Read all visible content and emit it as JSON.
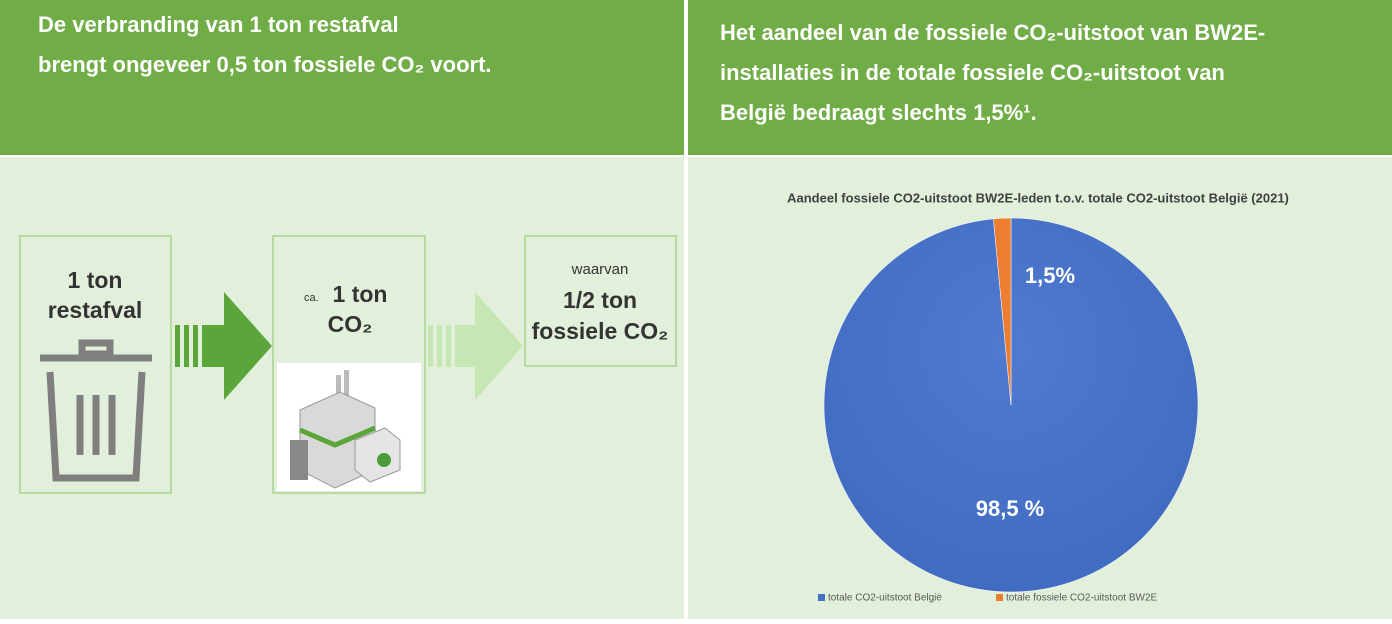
{
  "left": {
    "title_lines": [
      "De verbranding van 1 ton restafval",
      "brengt ongeveer 0,5 ton fossiele CO₂ voort."
    ],
    "boxes": [
      {
        "lines": [
          "1 ton",
          "restafval"
        ]
      },
      {
        "prefix": "ca.",
        "lines": [
          "1 ton",
          "CO₂"
        ]
      },
      {
        "prefix": "waarvan",
        "lines": [
          "1/2 ton",
          "fossiele CO₂"
        ]
      }
    ]
  },
  "right": {
    "title_lines": [
      "Het aandeel van de fossiele CO₂-uitstoot van BW2E-",
      "installaties in de totale fossiele CO₂-uitstoot van",
      "België bedraagt slechts 1,5%¹."
    ]
  },
  "chart_data": {
    "type": "pie",
    "title": "Aandeel fossiele CO2-uitstoot BW2E-leden t.o.v. totale CO2-uitstoot België (2021)",
    "categories": [
      "totale CO2-uitstoot België",
      "totale fossiele CO2-uitstoot BW2E"
    ],
    "values": [
      98.5,
      1.5
    ],
    "value_labels": [
      "98,5 %",
      "1,5%"
    ],
    "colors": [
      "#4472c4",
      "#ed7d31"
    ],
    "legend": "bottom"
  }
}
